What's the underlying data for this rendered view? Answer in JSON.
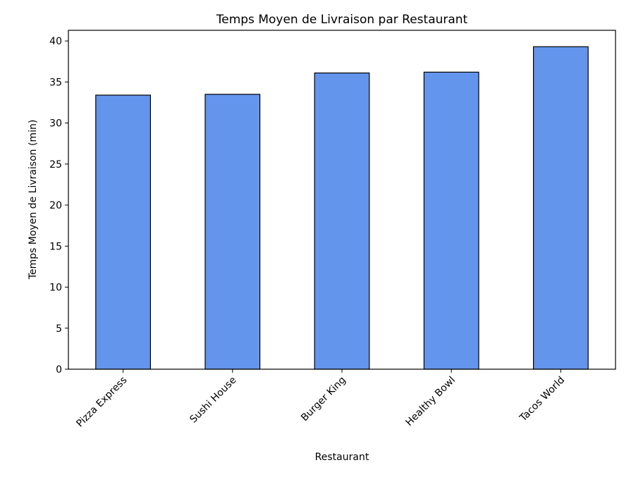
{
  "chart_data": {
    "type": "bar",
    "title": "Temps Moyen de Livraison par Restaurant",
    "xlabel": "Restaurant",
    "ylabel": "Temps Moyen de Livraison (min)",
    "categories": [
      "Pizza Express",
      "Sushi House",
      "Burger King",
      "Healthy Bowl",
      "Tacos World"
    ],
    "values": [
      33.4,
      33.5,
      36.1,
      36.2,
      39.3
    ],
    "ylim": [
      0,
      41.3
    ],
    "yticks": [
      0,
      5,
      10,
      15,
      20,
      25,
      30,
      35,
      40
    ],
    "grid": false,
    "bar_color": "#6495ed",
    "edge_color": "#000000"
  }
}
